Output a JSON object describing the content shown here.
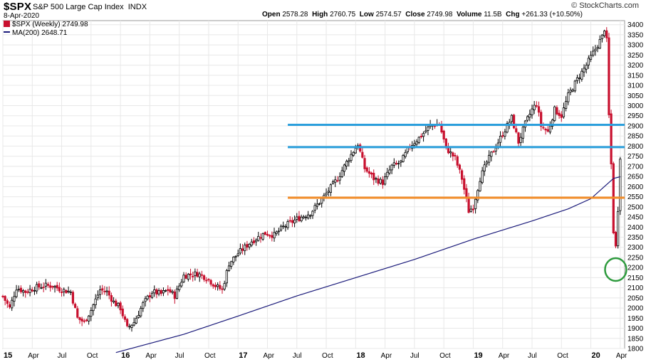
{
  "header": {
    "symbol": "$SPX",
    "description": "S&P 500 Large Cap Index",
    "exchange": "INDX",
    "date": "8-Apr-2020",
    "open_label": "Open",
    "open": "2578.28",
    "high_label": "High",
    "high": "2760.75",
    "low_label": "Low",
    "low": "2574.57",
    "close_label": "Close",
    "close": "2749.98",
    "volume_label": "Volume",
    "volume": "11.5B",
    "chg_label": "Chg",
    "chg": "+261.33 (+10.50%)",
    "brand": "© StockCharts.com"
  },
  "legend": {
    "price": "$SPX (Weekly) 2749.98",
    "ma": "MA(200) 2648.71"
  },
  "colors": {
    "candle_up": "#000000",
    "candle_down": "#c8102e",
    "ma": "#1a1a7a",
    "resistance": "#2b9fdc",
    "support": "#f28c28",
    "circle": "#2e9b3e",
    "grid": "#e8e8e8"
  },
  "chart_data": {
    "type": "candlestick",
    "title": "$SPX S&P 500 Large Cap Index (Weekly)",
    "interval": "weekly",
    "ylim": [
      1800,
      3420
    ],
    "y_ticks": [
      "1800",
      "1850",
      "1900",
      "1950",
      "2000",
      "2050",
      "2100",
      "2150",
      "2200",
      "2250",
      "2300",
      "2350",
      "2400",
      "2450",
      "2500",
      "2550",
      "2600",
      "2650",
      "2700",
      "2750",
      "2800",
      "2850",
      "2900",
      "2950",
      "3000",
      "3050",
      "3100",
      "3150",
      "3200",
      "3250",
      "3300",
      "3350",
      "3400"
    ],
    "x_ticks": [
      {
        "label": "15",
        "week": 0,
        "bold": true
      },
      {
        "label": "Apr",
        "week": 13
      },
      {
        "label": "Jul",
        "week": 26
      },
      {
        "label": "Oct",
        "week": 39
      },
      {
        "label": "16",
        "week": 52,
        "bold": true
      },
      {
        "label": "Apr",
        "week": 65
      },
      {
        "label": "Jul",
        "week": 78
      },
      {
        "label": "Oct",
        "week": 91
      },
      {
        "label": "17",
        "week": 104,
        "bold": true
      },
      {
        "label": "Apr",
        "week": 117
      },
      {
        "label": "Jul",
        "week": 130
      },
      {
        "label": "Oct",
        "week": 143
      },
      {
        "label": "18",
        "week": 156,
        "bold": true
      },
      {
        "label": "Apr",
        "week": 169
      },
      {
        "label": "Jul",
        "week": 182
      },
      {
        "label": "Oct",
        "week": 195
      },
      {
        "label": "19",
        "week": 208,
        "bold": true
      },
      {
        "label": "Apr",
        "week": 221
      },
      {
        "label": "Jul",
        "week": 234
      },
      {
        "label": "Oct",
        "week": 247
      },
      {
        "label": "20",
        "week": 260,
        "bold": true
      },
      {
        "label": "Apr",
        "week": 273
      }
    ],
    "x_range_weeks": [
      0,
      274
    ],
    "price_anchors": [
      [
        0,
        2058
      ],
      [
        3,
        2000
      ],
      [
        6,
        2100
      ],
      [
        10,
        2080
      ],
      [
        14,
        2100
      ],
      [
        18,
        2110
      ],
      [
        22,
        2110
      ],
      [
        26,
        2090
      ],
      [
        30,
        2080
      ],
      [
        33,
        1950
      ],
      [
        36,
        1930
      ],
      [
        39,
        1990
      ],
      [
        43,
        2090
      ],
      [
        46,
        2080
      ],
      [
        49,
        2030
      ],
      [
        52,
        2000
      ],
      [
        55,
        1900
      ],
      [
        58,
        1930
      ],
      [
        62,
        2020
      ],
      [
        66,
        2080
      ],
      [
        70,
        2070
      ],
      [
        73,
        2090
      ],
      [
        76,
        2060
      ],
      [
        80,
        2160
      ],
      [
        86,
        2170
      ],
      [
        90,
        2150
      ],
      [
        94,
        2110
      ],
      [
        97,
        2090
      ],
      [
        100,
        2220
      ],
      [
        104,
        2270
      ],
      [
        110,
        2330
      ],
      [
        116,
        2370
      ],
      [
        120,
        2360
      ],
      [
        124,
        2400
      ],
      [
        130,
        2440
      ],
      [
        136,
        2470
      ],
      [
        142,
        2550
      ],
      [
        148,
        2640
      ],
      [
        153,
        2740
      ],
      [
        157,
        2810
      ],
      [
        160,
        2690
      ],
      [
        164,
        2640
      ],
      [
        168,
        2620
      ],
      [
        172,
        2700
      ],
      [
        176,
        2720
      ],
      [
        180,
        2800
      ],
      [
        184,
        2840
      ],
      [
        189,
        2900
      ],
      [
        193,
        2910
      ],
      [
        196,
        2790
      ],
      [
        200,
        2740
      ],
      [
        203,
        2640
      ],
      [
        206,
        2480
      ],
      [
        208,
        2500
      ],
      [
        211,
        2640
      ],
      [
        214,
        2720
      ],
      [
        218,
        2800
      ],
      [
        222,
        2880
      ],
      [
        225,
        2940
      ],
      [
        228,
        2820
      ],
      [
        231,
        2910
      ],
      [
        234,
        2980
      ],
      [
        236,
        3010
      ],
      [
        238,
        2900
      ],
      [
        241,
        2870
      ],
      [
        244,
        2980
      ],
      [
        247,
        2950
      ],
      [
        250,
        3050
      ],
      [
        254,
        3130
      ],
      [
        258,
        3200
      ],
      [
        262,
        3280
      ],
      [
        265,
        3340
      ],
      [
        266,
        3380
      ],
      [
        267,
        3320
      ],
      [
        268,
        2950
      ],
      [
        269,
        2710
      ],
      [
        270,
        2380
      ],
      [
        271,
        2300
      ],
      [
        272,
        2490
      ],
      [
        273,
        2750
      ]
    ],
    "ma200": {
      "name": "MA(200)",
      "points": [
        [
          50,
          1780
        ],
        [
          80,
          1870
        ],
        [
          104,
          1960
        ],
        [
          130,
          2060
        ],
        [
          156,
          2150
        ],
        [
          182,
          2240
        ],
        [
          208,
          2340
        ],
        [
          234,
          2430
        ],
        [
          250,
          2490
        ],
        [
          260,
          2540
        ],
        [
          266,
          2600
        ],
        [
          270,
          2640
        ],
        [
          273,
          2648.71
        ]
      ]
    },
    "annotations": [
      {
        "type": "hline",
        "value": 2905,
        "from_week": 126,
        "color": "resistance"
      },
      {
        "type": "hline",
        "value": 2795,
        "from_week": 126,
        "color": "resistance"
      },
      {
        "type": "hline",
        "value": 2545,
        "from_week": 126,
        "color": "support"
      },
      {
        "type": "circle",
        "week": 271,
        "value": 2190,
        "color": "circle"
      }
    ]
  }
}
